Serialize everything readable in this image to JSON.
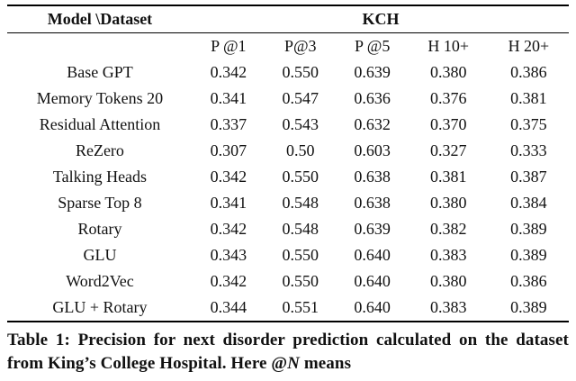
{
  "table": {
    "corner_label": "Model \\Dataset",
    "group_header": "KCH",
    "columns": [
      "P @1",
      "P@3",
      "P @5",
      "H 10+",
      "H 20+"
    ],
    "rows": [
      {
        "model": "Base GPT",
        "values": [
          "0.342",
          "0.550",
          "0.639",
          "0.380",
          "0.386"
        ],
        "bold": [
          false,
          false,
          false,
          false,
          false
        ]
      },
      {
        "model": "Memory Tokens 20",
        "values": [
          "0.341",
          "0.547",
          "0.636",
          "0.376",
          "0.381"
        ],
        "bold": [
          false,
          false,
          false,
          false,
          false
        ]
      },
      {
        "model": "Residual Attention",
        "values": [
          "0.337",
          "0.543",
          "0.632",
          "0.370",
          "0.375"
        ],
        "bold": [
          false,
          false,
          false,
          false,
          false
        ]
      },
      {
        "model": "ReZero",
        "values": [
          "0.307",
          "0.50",
          "0.603",
          "0.327",
          "0.333"
        ],
        "bold": [
          false,
          false,
          false,
          false,
          false
        ]
      },
      {
        "model": "Talking Heads",
        "values": [
          "0.342",
          "0.550",
          "0.638",
          "0.381",
          "0.387"
        ],
        "bold": [
          false,
          false,
          false,
          false,
          false
        ]
      },
      {
        "model": "Sparse Top 8",
        "values": [
          "0.341",
          "0.548",
          "0.638",
          "0.380",
          "0.384"
        ],
        "bold": [
          false,
          false,
          false,
          false,
          false
        ]
      },
      {
        "model": "Rotary",
        "values": [
          "0.342",
          "0.548",
          "0.639",
          "0.382",
          "0.389"
        ],
        "bold": [
          false,
          false,
          false,
          false,
          true
        ]
      },
      {
        "model": "GLU",
        "values": [
          "0.343",
          "0.550",
          "0.640",
          "0.383",
          "0.389"
        ],
        "bold": [
          false,
          false,
          true,
          true,
          true
        ]
      },
      {
        "model": "Word2Vec",
        "values": [
          "0.342",
          "0.550",
          "0.640",
          "0.380",
          "0.386"
        ],
        "bold": [
          false,
          false,
          true,
          false,
          false
        ]
      },
      {
        "model": "GLU + Rotary",
        "values": [
          "0.344",
          "0.551",
          "0.640",
          "0.383",
          "0.389"
        ],
        "bold": [
          true,
          true,
          true,
          true,
          true
        ]
      }
    ]
  },
  "caption": {
    "text_before_var": "Table 1: Precision for next disorder prediction calculated on the dataset from King’s College Hospital. Here @",
    "var": "N",
    "text_after_var": " means"
  }
}
